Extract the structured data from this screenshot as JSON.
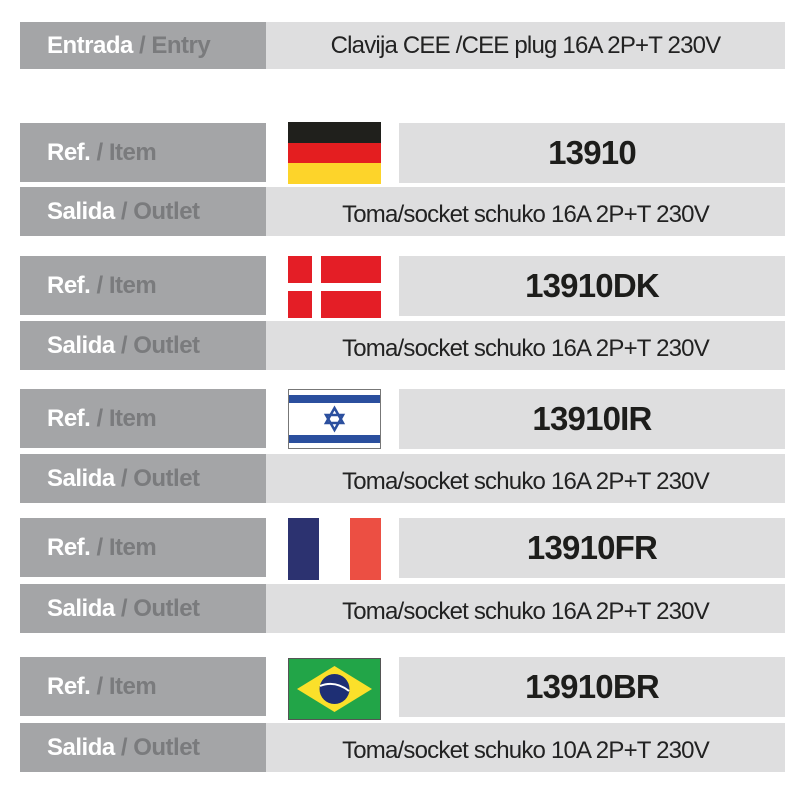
{
  "entry": {
    "label_es": "Entrada",
    "label_en": "/ Entry",
    "value": "Clavija CEE /CEE plug 16A 2P+T 230V"
  },
  "labels": {
    "ref_es": "Ref.",
    "ref_en": "/ Item",
    "outlet_es": "Salida",
    "outlet_en": "/ Outlet"
  },
  "items": [
    {
      "flag": "germany-flag",
      "ref": "13910",
      "outlet": "Toma/socket schuko 16A 2P+T 230V"
    },
    {
      "flag": "denmark-flag",
      "ref": "13910DK",
      "outlet": "Toma/socket schuko 16A 2P+T 230V"
    },
    {
      "flag": "israel-flag",
      "ref": "13910IR",
      "outlet": "Toma/socket schuko 16A 2P+T 230V"
    },
    {
      "flag": "france-flag",
      "ref": "13910FR",
      "outlet": "Toma/socket schuko 16A 2P+T 230V"
    },
    {
      "flag": "brazil-flag",
      "ref": "13910BR",
      "outlet": "Toma/socket schuko 10A 2P+T 230V"
    }
  ]
}
